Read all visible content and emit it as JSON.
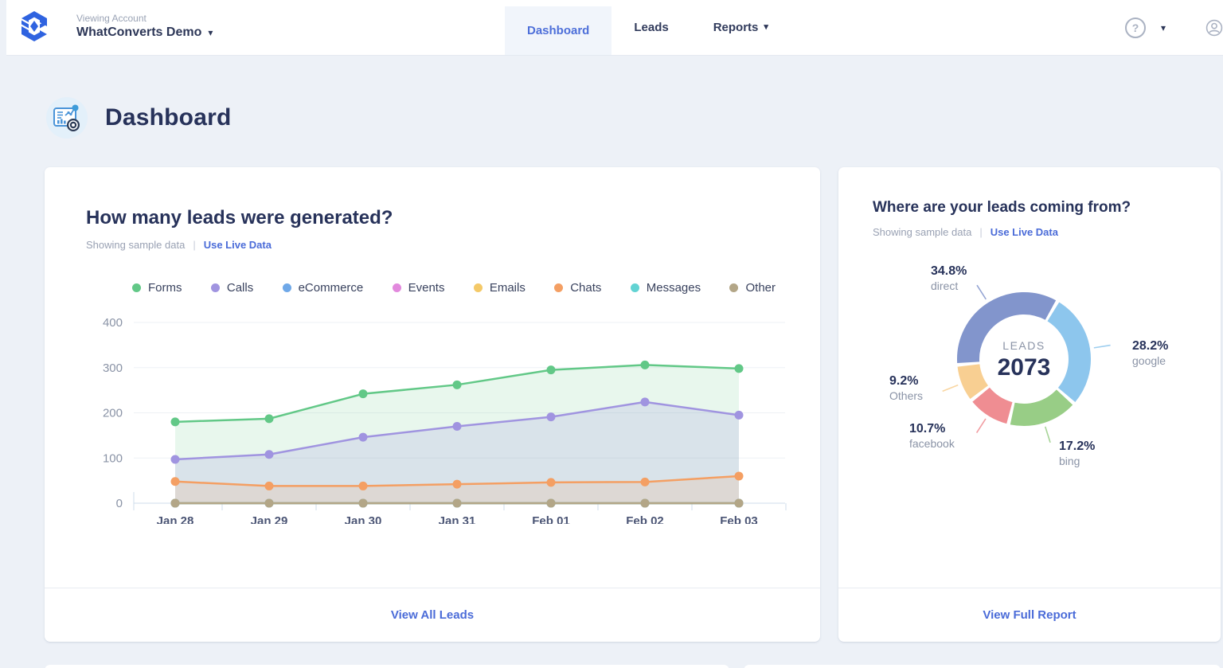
{
  "header": {
    "viewing_account_label": "Viewing Account",
    "account_name": "WhatConverts Demo",
    "nav": {
      "dashboard": "Dashboard",
      "leads": "Leads",
      "reports": "Reports"
    },
    "icons": {
      "caret_down": "▾",
      "help": "help-icon",
      "user": "user-icon"
    }
  },
  "page": {
    "title": "Dashboard"
  },
  "leads_card": {
    "title": "How many leads were generated?",
    "sample_label": "Showing sample data",
    "separator": "|",
    "live_link": "Use Live Data",
    "footer_link": "View All Leads",
    "chart_data": {
      "type": "area",
      "title": "How many leads were generated?",
      "x": [
        "Jan 28",
        "Jan 29",
        "Jan 30",
        "Jan 31",
        "Feb 01",
        "Feb 02",
        "Feb 03"
      ],
      "ylim": [
        0,
        400
      ],
      "yticks": [
        0,
        100,
        200,
        300,
        400
      ],
      "grid": true,
      "legend_position": "top",
      "series": [
        {
          "name": "Forms",
          "color": "#62c887",
          "fill": "rgba(98,200,135,0.15)",
          "values": [
            180,
            187,
            242,
            262,
            295,
            306,
            298
          ]
        },
        {
          "name": "Calls",
          "color": "#a094e0",
          "fill": "rgba(160,148,224,0.20)",
          "values": [
            97,
            108,
            146,
            170,
            191,
            224,
            195
          ]
        },
        {
          "name": "eCommerce",
          "color": "#6fa8e8",
          "fill": "rgba(111,168,232,0.15)",
          "values": [
            0,
            0,
            0,
            0,
            0,
            0,
            0
          ]
        },
        {
          "name": "Events",
          "color": "#e289dd",
          "fill": "rgba(226,137,221,0.15)",
          "values": [
            0,
            0,
            0,
            0,
            0,
            0,
            0
          ]
        },
        {
          "name": "Emails",
          "color": "#f4c968",
          "fill": "rgba(244,201,104,0.15)",
          "values": [
            0,
            0,
            0,
            0,
            0,
            0,
            0
          ]
        },
        {
          "name": "Chats",
          "color": "#f49f63",
          "fill": "rgba(244,159,99,0.16)",
          "values": [
            48,
            38,
            38,
            42,
            46,
            47,
            60
          ]
        },
        {
          "name": "Messages",
          "color": "#62d3d3",
          "fill": "rgba(98,211,211,0.15)",
          "values": [
            0,
            0,
            0,
            0,
            0,
            0,
            0
          ]
        },
        {
          "name": "Other",
          "color": "#b3a687",
          "fill": "rgba(179,166,135,0.15)",
          "values": [
            0,
            0,
            0,
            0,
            0,
            0,
            0
          ]
        }
      ]
    }
  },
  "sources_card": {
    "title": "Where are your leads coming from?",
    "sample_label": "Showing sample data",
    "separator": "|",
    "live_link": "Use Live Data",
    "footer_link": "View Full Report",
    "chart_data": {
      "type": "pie",
      "center_label": "LEADS",
      "center_value": "2073",
      "start_angle_deg": 265,
      "segments": [
        {
          "name": "direct",
          "pct": 34.8,
          "pct_label": "34.8%",
          "color": "#8295cc"
        },
        {
          "name": "google",
          "pct": 28.2,
          "pct_label": "28.2%",
          "color": "#8dc6ed"
        },
        {
          "name": "bing",
          "pct": 17.2,
          "pct_label": "17.2%",
          "color": "#98cd86"
        },
        {
          "name": "facebook",
          "pct": 10.7,
          "pct_label": "10.7%",
          "color": "#ef8d92"
        },
        {
          "name": "Others",
          "pct": 9.2,
          "pct_label": "9.2%",
          "color": "#f8cf92"
        }
      ]
    }
  }
}
